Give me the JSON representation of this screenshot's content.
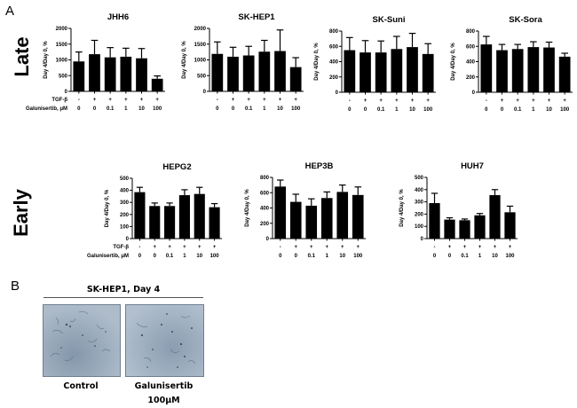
{
  "panels": {
    "a_label": "A",
    "b_label": "B",
    "row_labels": {
      "late": "Late",
      "early": "Early"
    }
  },
  "conditions": {
    "tgf_label": "TGF-β",
    "galunisertib_label": "Galunisertib, μM",
    "tgf_values": [
      "-",
      "+",
      "+",
      "+",
      "+",
      "+"
    ],
    "galunisertib_values": [
      "0",
      "0",
      "0.1",
      "1",
      "10",
      "100"
    ]
  },
  "chart_data": [
    {
      "type": "bar",
      "title": "JHH6",
      "row": "Late",
      "ylabel": "Day 4/Day 0, %",
      "categories": [
        "- / 0",
        "+ / 0",
        "+ / 0.1",
        "+ / 1",
        "+ / 10",
        "+ / 100"
      ],
      "values": [
        950,
        1180,
        1080,
        1100,
        1050,
        400
      ],
      "error_upper": [
        1250,
        1620,
        1390,
        1370,
        1360,
        490
      ],
      "ylim": [
        0,
        2000
      ],
      "yticks": [
        0,
        500,
        1000,
        1500,
        2000
      ],
      "grid": false,
      "show_condition_labels": true
    },
    {
      "type": "bar",
      "title": "SK-HEP1",
      "row": "Late",
      "ylabel": "Day 4/Day 0, %",
      "categories": [
        "- / 0",
        "+ / 0",
        "+ / 0.1",
        "+ / 1",
        "+ / 10",
        "+ / 100"
      ],
      "values": [
        1190,
        1100,
        1140,
        1260,
        1280,
        770
      ],
      "error_upper": [
        1570,
        1400,
        1430,
        1620,
        1950,
        1070
      ],
      "ylim": [
        0,
        2000
      ],
      "yticks": [
        0,
        500,
        1000,
        1500,
        2000
      ],
      "grid": false,
      "show_condition_labels": false
    },
    {
      "type": "bar",
      "title": "SK-Suni",
      "row": "Late",
      "ylabel": "Day 4/Day 0, %",
      "categories": [
        "- / 0",
        "+ / 0",
        "+ / 0.1",
        "+ / 1",
        "+ / 10",
        "+ / 100"
      ],
      "values": [
        550,
        520,
        520,
        565,
        590,
        500
      ],
      "error_upper": [
        715,
        675,
        670,
        730,
        770,
        635
      ],
      "ylim": [
        0,
        800
      ],
      "yticks": [
        0,
        200,
        400,
        600,
        800
      ],
      "grid": false,
      "show_condition_labels": false
    },
    {
      "type": "bar",
      "title": "SK-Sora",
      "row": "Late",
      "ylabel": "Day 4/Day 0, %",
      "categories": [
        "- / 0",
        "+ / 0",
        "+ / 0.1",
        "+ / 1",
        "+ / 10",
        "+ / 100"
      ],
      "values": [
        625,
        550,
        565,
        590,
        585,
        465
      ],
      "error_upper": [
        730,
        625,
        625,
        660,
        655,
        510
      ],
      "ylim": [
        0,
        800
      ],
      "yticks": [
        0,
        200,
        400,
        600,
        800
      ],
      "grid": false,
      "show_condition_labels": false
    },
    {
      "type": "bar",
      "title": "HEPG2",
      "row": "Early",
      "ylabel": "Day 4/Day 0, %",
      "categories": [
        "- / 0",
        "+ / 0",
        "+ / 0.1",
        "+ / 1",
        "+ / 10",
        "+ / 100"
      ],
      "values": [
        385,
        270,
        270,
        360,
        370,
        260
      ],
      "error_upper": [
        425,
        295,
        295,
        405,
        425,
        290
      ],
      "ylim": [
        0,
        500
      ],
      "yticks": [
        0,
        100,
        200,
        300,
        400,
        500
      ],
      "grid": false,
      "show_condition_labels": true
    },
    {
      "type": "bar",
      "title": "HEP3B",
      "row": "Early",
      "ylabel": "Day 4/Day 0, %",
      "categories": [
        "- / 0",
        "+ / 0",
        "+ / 0.1",
        "+ / 1",
        "+ / 10",
        "+ / 100"
      ],
      "values": [
        680,
        480,
        430,
        530,
        610,
        570
      ],
      "error_upper": [
        765,
        580,
        520,
        610,
        700,
        675
      ],
      "ylim": [
        0,
        800
      ],
      "yticks": [
        0,
        200,
        400,
        600,
        800
      ],
      "grid": false,
      "show_condition_labels": false
    },
    {
      "type": "bar",
      "title": "HUH7",
      "row": "Early",
      "ylabel": "Day 4/Day 0, %",
      "categories": [
        "- / 0",
        "+ / 0",
        "+ / 0.1",
        "+ / 1",
        "+ / 10",
        "+ / 100"
      ],
      "values": [
        290,
        155,
        150,
        190,
        355,
        215
      ],
      "error_upper": [
        370,
        170,
        160,
        205,
        400,
        265
      ],
      "ylim": [
        0,
        500
      ],
      "yticks": [
        0,
        100,
        200,
        300,
        400,
        500
      ],
      "grid": false,
      "show_condition_labels": false
    }
  ],
  "panel_b": {
    "header": "SK-HEP1, Day 4",
    "images": [
      {
        "caption_line1": "Control",
        "caption_line2": ""
      },
      {
        "caption_line1": "Galunisertib",
        "caption_line2": "100μM"
      }
    ],
    "micrograph_color": "#9dafc1"
  },
  "colors": {
    "bar": "#000000",
    "axis": "#000000"
  }
}
